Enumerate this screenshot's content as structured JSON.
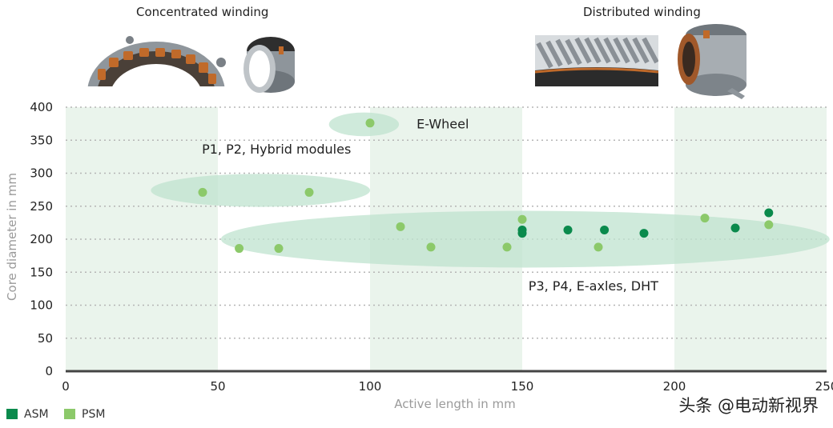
{
  "header": {
    "left_caption": "Concentrated winding",
    "right_caption": "Distributed winding"
  },
  "images": [
    {
      "name": "concentrated-stator-photo",
      "depicts": "stator ring with coils"
    },
    {
      "name": "concentrated-rotor-photo",
      "depicts": "motor ring"
    },
    {
      "name": "distributed-winding-closeup-photo",
      "depicts": "hairpin winding close-up"
    },
    {
      "name": "distributed-stator-photo",
      "depicts": "stator with windings"
    }
  ],
  "chart_data": {
    "type": "scatter",
    "xlabel": "Active length in mm",
    "ylabel": "Core diameter in mm",
    "xlim": [
      0,
      250
    ],
    "ylim": [
      0,
      400
    ],
    "xticks": [
      0,
      50,
      100,
      150,
      200,
      250
    ],
    "yticks": [
      0,
      50,
      100,
      150,
      200,
      250,
      300,
      350,
      400
    ],
    "grid": "horizontal dotted",
    "legend_position": "bottom-left",
    "colors": {
      "ASM": "#0a8a4c",
      "PSM": "#8cc96a",
      "ellipse": "#bfe3cf",
      "band": "#eaf4ec",
      "axis": "#444444",
      "tick_text": "#222222",
      "label_text": "#9a9a9a",
      "grid": "#b5b5b5"
    },
    "series": [
      {
        "name": "ASM",
        "points": [
          [
            150,
            214
          ],
          [
            150,
            209
          ],
          [
            165,
            214
          ],
          [
            177,
            214
          ],
          [
            190,
            209
          ],
          [
            220,
            217
          ],
          [
            231,
            240
          ]
        ]
      },
      {
        "name": "PSM",
        "points": [
          [
            100,
            376
          ],
          [
            45,
            271
          ],
          [
            80,
            271
          ],
          [
            57,
            186
          ],
          [
            70,
            186
          ],
          [
            110,
            219
          ],
          [
            120,
            188
          ],
          [
            145,
            188
          ],
          [
            150,
            230
          ],
          [
            175,
            188
          ],
          [
            210,
            232
          ],
          [
            231,
            222
          ]
        ]
      }
    ],
    "bands": [
      [
        0,
        50
      ],
      [
        100,
        150
      ],
      [
        200,
        250
      ]
    ],
    "regions": [
      {
        "label": "E-Wheel",
        "cx": 98,
        "cy": 374,
        "rx": 11.5,
        "ry": 18
      },
      {
        "label": "P1, P2, Hybrid modules",
        "cx": 64,
        "cy": 274,
        "rx": 36,
        "ry": 25
      },
      {
        "label": "P3, P4, E-axles, DHT",
        "cx": 151,
        "cy": 200,
        "rx": 100,
        "ry": 43
      }
    ]
  },
  "watermark": "头条 @电动新视界"
}
